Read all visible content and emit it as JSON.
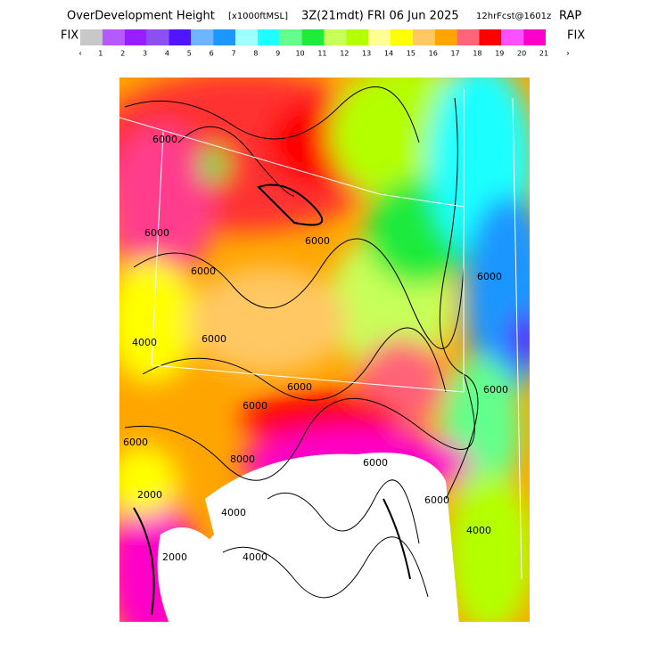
{
  "header": {
    "title_parts": [
      "OverDevelopment Height",
      "[x1000ftMSL]",
      "3Z(21mdt) FRI 06 Jun 2025",
      "12hrFcst@1601z",
      "RAP"
    ]
  },
  "colorbar": {
    "left_label": "FIX",
    "right_label": "FIX",
    "start_marker": "‹",
    "end_marker": "›",
    "swatches": [
      "#c8c8c8",
      "#b45aff",
      "#961eff",
      "#8c50f0",
      "#5014ff",
      "#6eb4ff",
      "#1e96ff",
      "#a0ffff",
      "#1effff",
      "#64ff8c",
      "#1eeb3c",
      "#c8ff5a",
      "#b4ff00",
      "#ffff96",
      "#ffff00",
      "#ffc864",
      "#ffa500",
      "#ff6478",
      "#ff0000",
      "#ff50ff",
      "#ff00c8"
    ],
    "labels": [
      "1",
      "2",
      "3",
      "4",
      "5",
      "6",
      "7",
      "8",
      "9",
      "10",
      "11",
      "12",
      "13",
      "14",
      "15",
      "16",
      "17",
      "18",
      "19",
      "20",
      "21"
    ]
  },
  "map": {
    "contour_labels": [
      "6000",
      "6000",
      "6000",
      "6000",
      "4000",
      "6000",
      "6000",
      "6000",
      "8000",
      "6000",
      "2000",
      "4000",
      "6000",
      "6000",
      "6000",
      "6000",
      "4000",
      "2000",
      "4000"
    ]
  }
}
